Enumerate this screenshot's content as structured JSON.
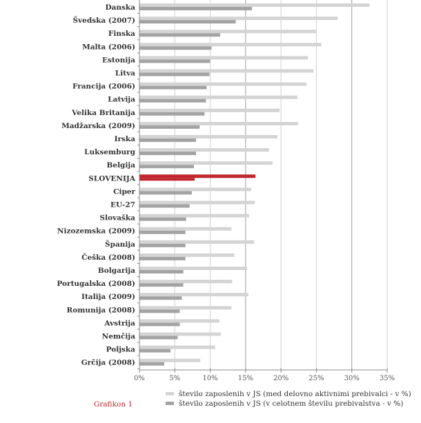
{
  "chart_data": {
    "type": "bar",
    "orientation": "horizontal",
    "categories": [
      "Danska",
      "Švedska (2007)",
      "Finska",
      "Malta (2006)",
      "Estonija",
      "Litva",
      "Francija (2006)",
      "Latvija",
      "Velika Britanija",
      "Madžarska (2009)",
      "Irska",
      "Luksemburg",
      "Belgija",
      "SLOVENIJA",
      "Ciper",
      "EU-27",
      "Slovaška",
      "Nizozemska (2009)",
      "Španija",
      "Češka (2008)",
      "Bolgarija",
      "Portugalska (2008)",
      "Italija (2009)",
      "Romunija (2008)",
      "Avstrija",
      "Nemčija",
      "Poljska",
      "Grčija (2008)"
    ],
    "series": [
      {
        "name": "število zaposlenih v JS (med delovno aktivnimi prebivalci - v %)",
        "color": "#d4d4d4",
        "values": [
          32.5,
          28.0,
          25.0,
          25.7,
          23.8,
          24.6,
          23.6,
          22.3,
          19.8,
          22.4,
          19.5,
          18.3,
          18.8,
          16.4,
          15.8,
          16.3,
          15.5,
          13.0,
          16.2,
          13.4,
          15.2,
          13.1,
          15.4,
          13.0,
          11.3,
          11.5,
          10.7,
          8.6
        ]
      },
      {
        "name": "število  zaposlenih v JS (v celotnem številu prebivalstva - v %)",
        "color": "#a3a3a5",
        "values": [
          15.9,
          13.6,
          11.4,
          10.2,
          10.0,
          9.9,
          9.5,
          9.4,
          9.2,
          8.5,
          8.0,
          8.0,
          7.7,
          7.8,
          7.4,
          7.1,
          6.6,
          6.5,
          6.5,
          6.5,
          6.2,
          6.2,
          6.0,
          5.7,
          5.7,
          5.4,
          4.4,
          3.5
        ]
      }
    ],
    "highlight": {
      "category": "SLOVENIJA",
      "color": "#c0272d"
    },
    "xlim": [
      0,
      35
    ],
    "xticks": [
      "0%",
      "5%",
      "10%",
      "15%",
      "20%",
      "25%",
      "30%",
      "35%"
    ],
    "grid": true,
    "legend": "bottom",
    "xlabel": "",
    "ylabel": ""
  },
  "caption": "Grafikon 1"
}
